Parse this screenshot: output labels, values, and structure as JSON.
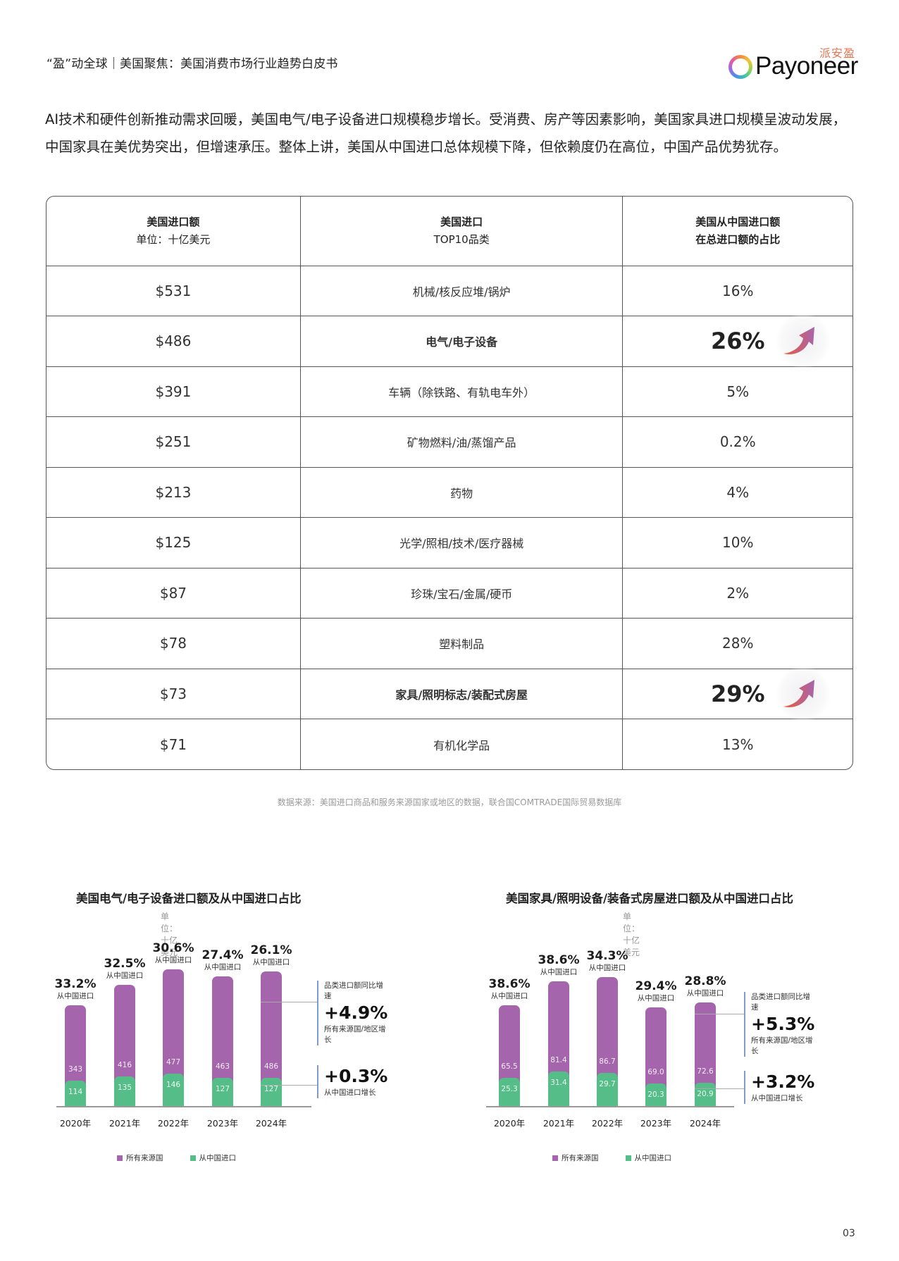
{
  "header": {
    "title": "“盈”动全球｜美国聚焦：美国消费市场行业趋势白皮书",
    "logo_cn": "派安盈",
    "logo_en": "Payoneer"
  },
  "intro": "AI技术和硬件创新推动需求回暖，美国电气/电子设备进口规模稳步增长。受消费、房产等因素影响，美国家具进口规模呈波动发展，中国家具在美优势突出，但增速承压。整体上讲，美国从中国进口总体规模下降，但依赖度仍在高位，中国产品优势犹存。",
  "table": {
    "headers": [
      {
        "title": "美国进口额",
        "sub": "单位：十亿美元"
      },
      {
        "title": "美国进口",
        "sub": "TOP10品类"
      },
      {
        "title": "美国从中国进口额",
        "sub": "在总进口额的占比"
      }
    ],
    "rows": [
      {
        "amount": "$531",
        "category": "机械/核反应堆/锅炉",
        "share": "16%"
      },
      {
        "amount": "$486",
        "category": "电气/电子设备",
        "share": "26%",
        "highlight": true
      },
      {
        "amount": "$391",
        "category": "车辆（除铁路、有轨电车外）",
        "share": "5%"
      },
      {
        "amount": "$251",
        "category": "矿物燃料/油/蒸馏产品",
        "share": "0.2%"
      },
      {
        "amount": "$213",
        "category": "药物",
        "share": "4%"
      },
      {
        "amount": "$125",
        "category": "光学/照相/技术/医疗器械",
        "share": "10%"
      },
      {
        "amount": "$87",
        "category": "珍珠/宝石/金属/硬币",
        "share": "2%"
      },
      {
        "amount": "$78",
        "category": "塑料制品",
        "share": "28%"
      },
      {
        "amount": "$73",
        "category": "家具/照明标志/装配式房屋",
        "share": "29%",
        "highlight": true
      },
      {
        "amount": "$71",
        "category": "有机化学品",
        "share": "13%"
      }
    ]
  },
  "source": "数据来源：美国进口商品和服务来源国家或地区的数据，联合国COMTRADE国际贸易数据库",
  "page_number": "03",
  "colors": {
    "total": "#a565ad",
    "china": "#55bd87",
    "arrow_start": "#ef5a3a",
    "arrow_end": "#a565ad",
    "callout_bar": "#7f9cc7"
  },
  "chart_data": [
    {
      "type": "bar",
      "stacked": true,
      "title": "美国电气/电子设备进口额及从中国进口占比",
      "subtitle": "单位：十亿美元",
      "categories": [
        "2020年",
        "2021年",
        "2022年",
        "2023年",
        "2024年"
      ],
      "series": [
        {
          "name": "所有来源国",
          "values": [
            343,
            416,
            477,
            463,
            486
          ]
        },
        {
          "name": "从中国进口",
          "values": [
            114,
            135,
            146,
            127,
            127
          ]
        }
      ],
      "share_from_china": [
        "33.2%",
        "32.5%",
        "30.6%",
        "27.4%",
        "26.1%"
      ],
      "share_label": "从中国进口",
      "annotations": [
        {
          "caption_top": "品类进口额同比增速",
          "value": "+4.9%",
          "caption_bottom": "所有来源国/地区增长"
        },
        {
          "caption_top": "",
          "value": "+0.3%",
          "caption_bottom": "从中国进口增长"
        }
      ],
      "legend": [
        "所有来源国",
        "从中国进口"
      ],
      "legend_position": "bottom",
      "grid": false
    },
    {
      "type": "bar",
      "stacked": true,
      "title": "美国家具/照明设备/装备式房屋进口额及从中国进口占比",
      "subtitle": "单位：十亿美元",
      "categories": [
        "2020年",
        "2021年",
        "2022年",
        "2023年",
        "2024年"
      ],
      "series": [
        {
          "name": "所有来源国",
          "values": [
            65.5,
            81.4,
            86.7,
            69.0,
            72.6
          ]
        },
        {
          "name": "从中国进口",
          "values": [
            25.3,
            31.4,
            29.7,
            20.3,
            20.9
          ]
        }
      ],
      "share_from_china": [
        "38.6%",
        "38.6%",
        "34.3%",
        "29.4%",
        "28.8%"
      ],
      "share_label": "从中国进口",
      "annotations": [
        {
          "caption_top": "品类进口额同比增速",
          "value": "+5.3%",
          "caption_bottom": "所有来源国/地区增长"
        },
        {
          "caption_top": "",
          "value": "+3.2%",
          "caption_bottom": "从中国进口增长"
        }
      ],
      "legend": [
        "所有来源国",
        "从中国进口"
      ],
      "legend_position": "bottom",
      "grid": false
    }
  ]
}
